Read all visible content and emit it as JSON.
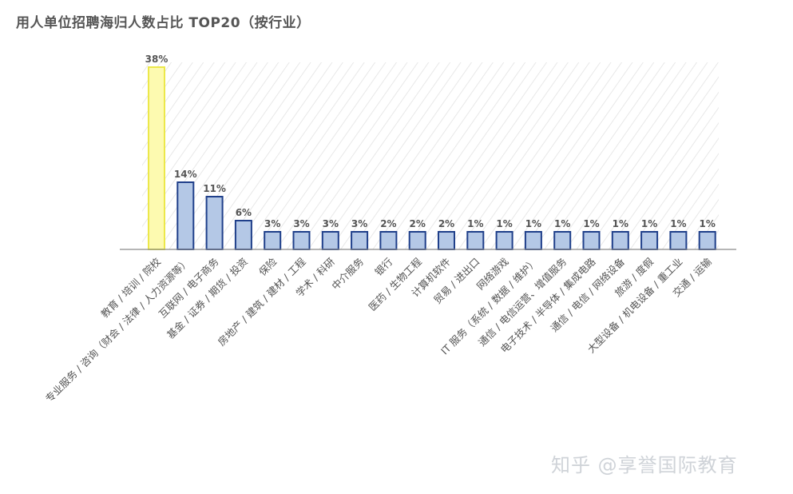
{
  "title": "用人单位招聘海归人数占比 TOP20（按行业）",
  "watermark": "知乎 @享誉国际教育",
  "chart_data": {
    "type": "bar",
    "title": "用人单位招聘海归人数占比 TOP20（按行业）",
    "xlabel": "",
    "ylabel": "",
    "unit": "%",
    "ylim": [
      0,
      38
    ],
    "grid": false,
    "legend": "none",
    "categories": [
      "教育 / 培训 / 院校",
      "专业服务 / 咨询（财会 / 法律 / 人力资源等）",
      "互联网 / 电子商务",
      "基金 / 证券 / 期货 / 投资",
      "保险",
      "房地产 / 建筑 / 建材 / 工程",
      "学术 / 科研",
      "中介服务",
      "银行",
      "医药 / 生物工程",
      "计算机软件",
      "贸易 / 进出口",
      "网络游戏",
      "IT 服务（系统 / 数据 / 维护）",
      "通信 / 电信运营、增值服务",
      "电子技术 / 半导体 / 集成电路",
      "通信 / 电信 / 网络设备",
      "旅游 / 度假",
      "大型设备 / 机电设备 / 重工业",
      "交通 / 运输"
    ],
    "values": [
      38,
      14,
      11,
      6,
      3,
      3,
      3,
      3,
      2,
      2,
      2,
      1,
      1,
      1,
      1,
      1,
      1,
      1,
      1,
      1
    ],
    "value_labels": [
      "38%",
      "14%",
      "11%",
      "6%",
      "3%",
      "3%",
      "3%",
      "3%",
      "2%",
      "2%",
      "2%",
      "1%",
      "1%",
      "1%",
      "1%",
      "1%",
      "1%",
      "1%",
      "1%",
      "1%"
    ],
    "highlight_index": 0,
    "colors": {
      "bar_fill": "#b4c8e6",
      "bar_stroke": "#1f3f8a",
      "highlight_fill": "#fdfab0",
      "highlight_stroke": "#ece84a",
      "hatch": "#e2e2e2",
      "baseline": "#8a8a8a",
      "text": "#555555"
    }
  }
}
